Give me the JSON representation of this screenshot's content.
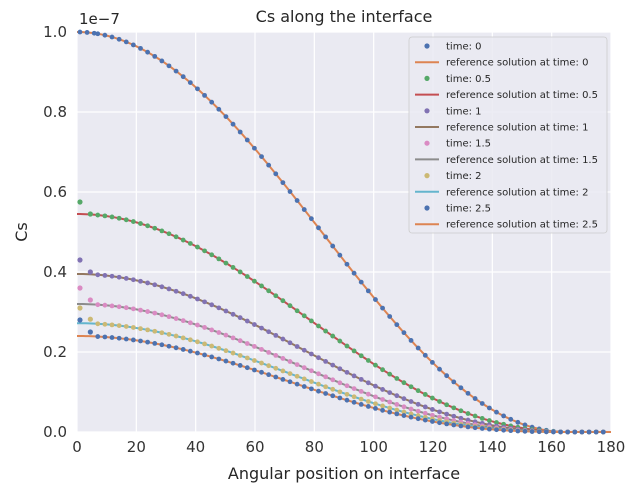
{
  "chart_data": {
    "type": "scatter",
    "title": "Cs along the interface",
    "xlabel": "Angular position on interface",
    "ylabel": "Cs",
    "y_offset_label": "1e−7",
    "xlim": [
      0,
      180
    ],
    "ylim": [
      0,
      1.0
    ],
    "x_ticks": [
      "0",
      "20",
      "40",
      "60",
      "80",
      "100",
      "120",
      "140",
      "160",
      "180"
    ],
    "y_ticks": [
      "0.0",
      "0.2",
      "0.4",
      "0.6",
      "0.8",
      "1.0"
    ],
    "grid": true,
    "legend_position": "top-right",
    "series": [
      {
        "name": "time: 0",
        "kind": "points",
        "time": 0,
        "color": "#4c72b0",
        "peak": 1.0
      },
      {
        "name": "reference solution at time: 0",
        "kind": "line",
        "time": 0,
        "color": "#dd8452",
        "peak": 1.0
      },
      {
        "name": "time: 0.5",
        "kind": "points",
        "time": 0.5,
        "color": "#55a868",
        "peak": 0.545,
        "near_edge": [
          [
            1,
            0.575
          ],
          [
            4.5,
            0.545
          ]
        ]
      },
      {
        "name": "reference solution at time: 0.5",
        "kind": "line",
        "time": 0.5,
        "color": "#c44e52",
        "peak": 0.545
      },
      {
        "name": "time: 1",
        "kind": "points",
        "time": 1,
        "color": "#8172b3",
        "peak": 0.395,
        "near_edge": [
          [
            1,
            0.43
          ],
          [
            4.5,
            0.4
          ]
        ]
      },
      {
        "name": "reference solution at time: 1",
        "kind": "line",
        "time": 1,
        "color": "#937860",
        "peak": 0.395
      },
      {
        "name": "time: 1.5",
        "kind": "points",
        "time": 1.5,
        "color": "#da8bc3",
        "peak": 0.32,
        "near_edge": [
          [
            1,
            0.36
          ],
          [
            4.5,
            0.33
          ]
        ]
      },
      {
        "name": "reference solution at time: 1.5",
        "kind": "line",
        "time": 1.5,
        "color": "#8c8c8c",
        "peak": 0.32
      },
      {
        "name": "time: 2",
        "kind": "points",
        "time": 2,
        "color": "#ccb974",
        "peak": 0.272,
        "near_edge": [
          [
            1,
            0.31
          ],
          [
            4.5,
            0.282
          ]
        ]
      },
      {
        "name": "reference solution at time: 2",
        "kind": "line",
        "time": 2,
        "color": "#64b5cd",
        "peak": 0.272
      },
      {
        "name": "time: 2.5",
        "kind": "points",
        "time": 2.5,
        "color": "#4c72b0",
        "peak": 0.24,
        "near_edge": [
          [
            1,
            0.28
          ],
          [
            4.5,
            0.25
          ]
        ]
      },
      {
        "name": "reference solution at time: 2.5",
        "kind": "line",
        "time": 2.5,
        "color": "#dd8452",
        "peak": 0.24
      }
    ]
  }
}
